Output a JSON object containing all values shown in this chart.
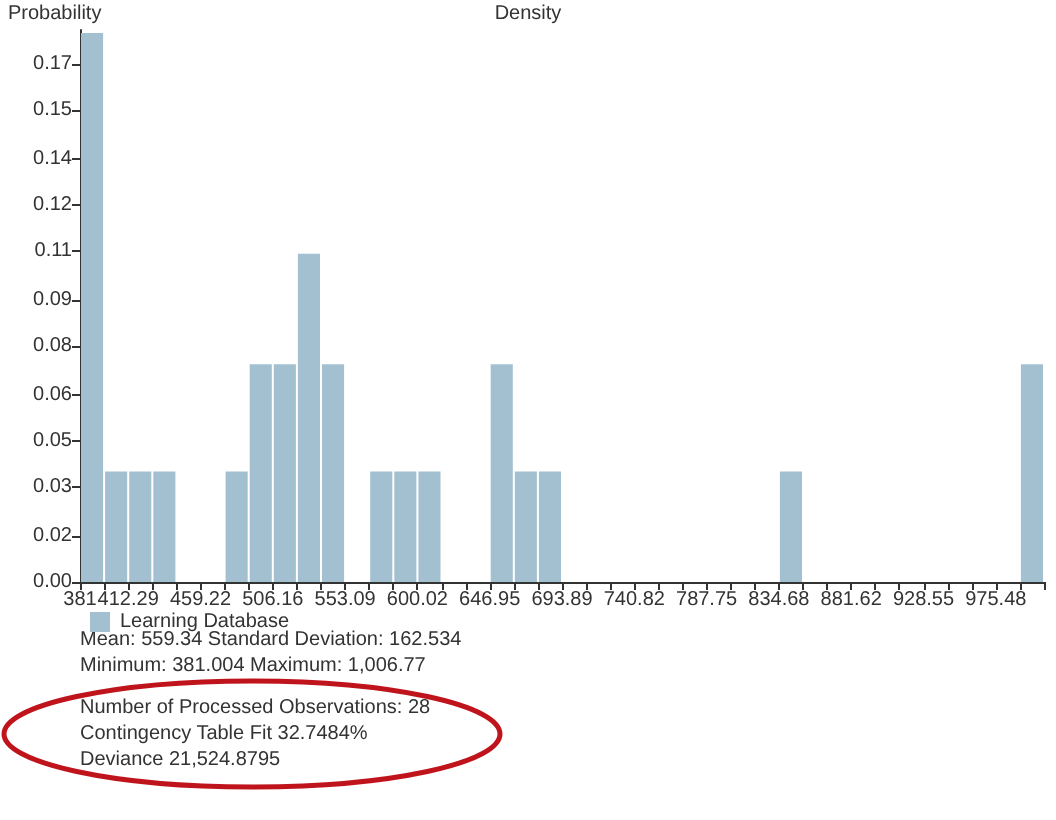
{
  "chart_data": {
    "type": "histogram",
    "title": "Density",
    "ylabel": "Probability",
    "bins": [
      381.0,
      396.65,
      412.29,
      427.94,
      443.58,
      459.22,
      474.87,
      490.51,
      506.16,
      521.8,
      537.45,
      553.09,
      568.73,
      584.38,
      600.02,
      615.67,
      631.31,
      646.95,
      662.6,
      678.24,
      693.89,
      709.53,
      725.18,
      740.82,
      756.46,
      772.11,
      787.75,
      803.4,
      819.04,
      834.68,
      850.33,
      865.97,
      881.62,
      897.26,
      912.91,
      928.55,
      944.19,
      959.84,
      975.48,
      991.13,
      1006.77
    ],
    "series": [
      {
        "name": "Learning Database",
        "color": "#a3c0d1",
        "values": [
          0.179,
          0.036,
          0.036,
          0.036,
          0,
          0,
          0.036,
          0.071,
          0.071,
          0.107,
          0.071,
          0,
          0.036,
          0.036,
          0.036,
          0,
          0,
          0.071,
          0.036,
          0.036,
          0,
          0,
          0,
          0,
          0,
          0,
          0,
          0,
          0,
          0.036,
          0,
          0,
          0,
          0,
          0,
          0,
          0,
          0,
          0,
          0.071
        ]
      }
    ],
    "xlim": [
      381,
      1006.77
    ],
    "xticks": [
      381,
      {
        "value": 396.65,
        "label": null
      },
      412.29,
      {
        "value": 427.94,
        "label": null
      },
      {
        "value": 443.58,
        "label": null
      },
      459.22,
      {
        "value": 474.87,
        "label": null
      },
      {
        "value": 490.51,
        "label": null
      },
      506.16,
      {
        "value": 521.8,
        "label": null
      },
      {
        "value": 537.45,
        "label": null
      },
      553.09,
      {
        "value": 568.73,
        "label": null
      },
      {
        "value": 584.38,
        "label": null
      },
      600.02,
      {
        "value": 615.67,
        "label": null
      },
      {
        "value": 631.31,
        "label": null
      },
      646.95,
      {
        "value": 662.6,
        "label": null
      },
      {
        "value": 678.24,
        "label": null
      },
      693.89,
      {
        "value": 709.53,
        "label": null
      },
      {
        "value": 725.18,
        "label": null
      },
      740.82,
      {
        "value": 756.46,
        "label": null
      },
      {
        "value": 772.11,
        "label": null
      },
      787.75,
      {
        "value": 803.4,
        "label": null
      },
      {
        "value": 819.04,
        "label": null
      },
      834.68,
      {
        "value": 850.33,
        "label": null
      },
      {
        "value": 865.97,
        "label": null
      },
      881.62,
      {
        "value": 897.26,
        "label": null
      },
      {
        "value": 912.91,
        "label": null
      },
      928.55,
      {
        "value": 944.19,
        "label": null
      },
      {
        "value": 959.84,
        "label": null
      },
      975.48,
      {
        "value": 991.13,
        "label": null
      },
      {
        "value": 1006.77,
        "label": null
      }
    ],
    "ylim": [
      0,
      0.18
    ],
    "yticks": [
      {
        "value": 0,
        "label": "0.00"
      },
      {
        "value": 0.015,
        "label": "0.02"
      },
      {
        "value": 0.031,
        "label": "0.03"
      },
      {
        "value": 0.046,
        "label": "0.05"
      },
      {
        "value": 0.061,
        "label": "0.06"
      },
      {
        "value": 0.077,
        "label": "0.08"
      },
      {
        "value": 0.092,
        "label": "0.09"
      },
      {
        "value": 0.108,
        "label": "0.11"
      },
      {
        "value": 0.123,
        "label": "0.12"
      },
      {
        "value": 0.138,
        "label": "0.14"
      },
      {
        "value": 0.154,
        "label": "0.15"
      },
      {
        "value": 0.169,
        "label": "0.17"
      }
    ],
    "grid": false,
    "legend": "bottom left",
    "annotations": [
      "Mean: 559.34 Standard Deviation: 162.534",
      "Minimum: 381.004 Maximum: 1,006.77",
      "Number of Processed Observations: 28",
      "Contingency Table Fit 32.7484%",
      "Deviance 21,524.8795"
    ]
  }
}
